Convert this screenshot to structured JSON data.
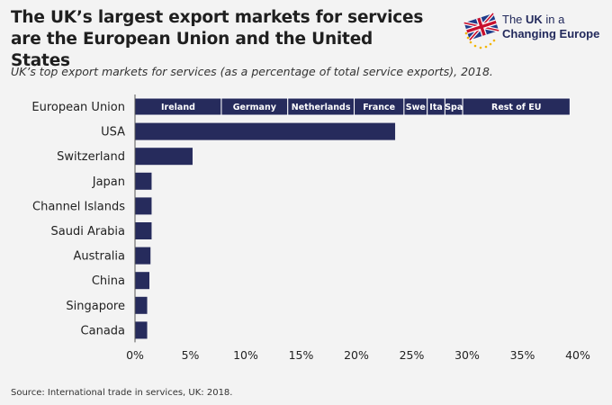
{
  "header": {
    "title": "The UK’s largest export markets for services are the European Union and the United States",
    "subtitle": "UK’s top export markets for services (as a percentage of total service exports), 2018."
  },
  "logo": {
    "line1_a": "The ",
    "line1_b": "UK",
    "line1_c": " in a",
    "line2": "Changing Europe"
  },
  "source": "Source: International trade in services, UK: 2018.",
  "colors": {
    "bar": "#262b5c",
    "background": "#f3f3f3",
    "segment_divider": "#ffffff"
  },
  "chart_data": {
    "type": "bar",
    "orientation": "horizontal",
    "categories": [
      "European Union",
      "USA",
      "Switzerland",
      "Japan",
      "Channel Islands",
      "Saudi Arabia",
      "Australia",
      "China",
      "Singapore",
      "Canada"
    ],
    "values": [
      39.3,
      23.5,
      5.2,
      1.5,
      1.5,
      1.5,
      1.4,
      1.3,
      1.1,
      1.1
    ],
    "eu_breakdown": [
      {
        "name": "Ireland",
        "value": 7.8
      },
      {
        "name": "Germany",
        "value": 6.0
      },
      {
        "name": "Netherlands",
        "value": 6.0
      },
      {
        "name": "France",
        "value": 4.5
      },
      {
        "name": "Swe",
        "value": 2.1
      },
      {
        "name": "Ita",
        "value": 1.6
      },
      {
        "name": "Spa",
        "value": 1.6
      },
      {
        "name": "Rest of EU",
        "value": 9.7
      }
    ],
    "xlim": [
      0,
      40
    ],
    "xticks": [
      0,
      5,
      10,
      15,
      20,
      25,
      30,
      35,
      40
    ],
    "tick_suffix": "%",
    "grid": false,
    "legend": "none"
  }
}
